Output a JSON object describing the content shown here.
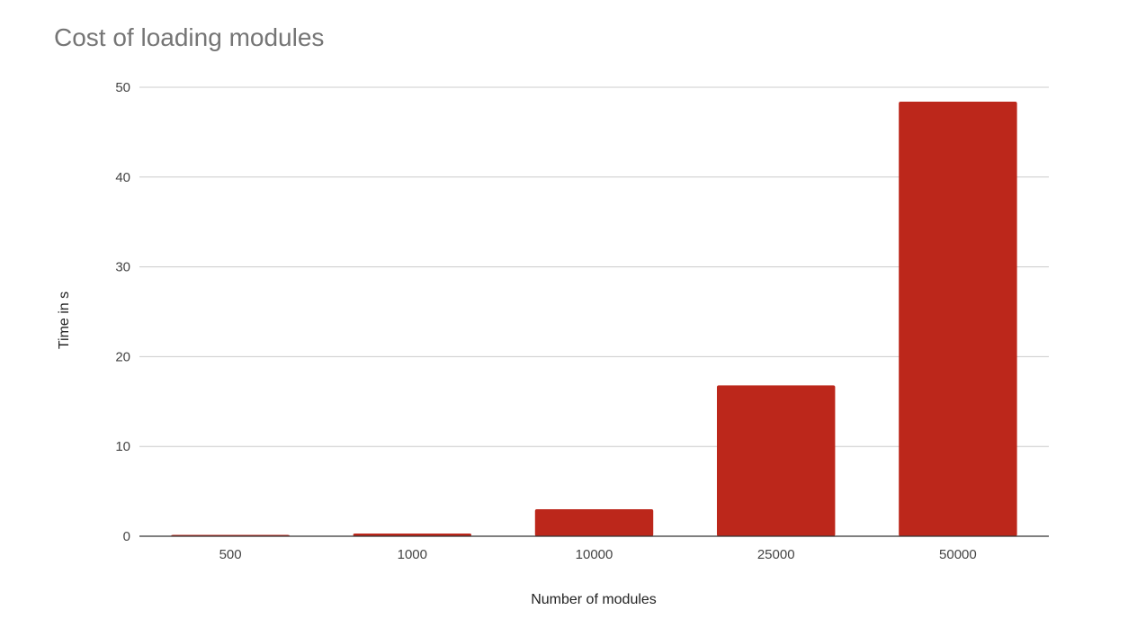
{
  "chart_data": {
    "type": "bar",
    "title": "Cost of loading modules",
    "xlabel": "Number of modules",
    "ylabel": "Time in s",
    "categories": [
      "500",
      "1000",
      "10000",
      "25000",
      "50000"
    ],
    "values": [
      0.1,
      0.3,
      3.0,
      16.8,
      48.4
    ],
    "ylim": [
      0,
      50
    ],
    "yticks": [
      0,
      10,
      20,
      30,
      40,
      50
    ],
    "grid": true,
    "legend": "none",
    "colors": {
      "bar": "#bc271b",
      "grid": "#cccccc",
      "axis": "#333333"
    }
  }
}
